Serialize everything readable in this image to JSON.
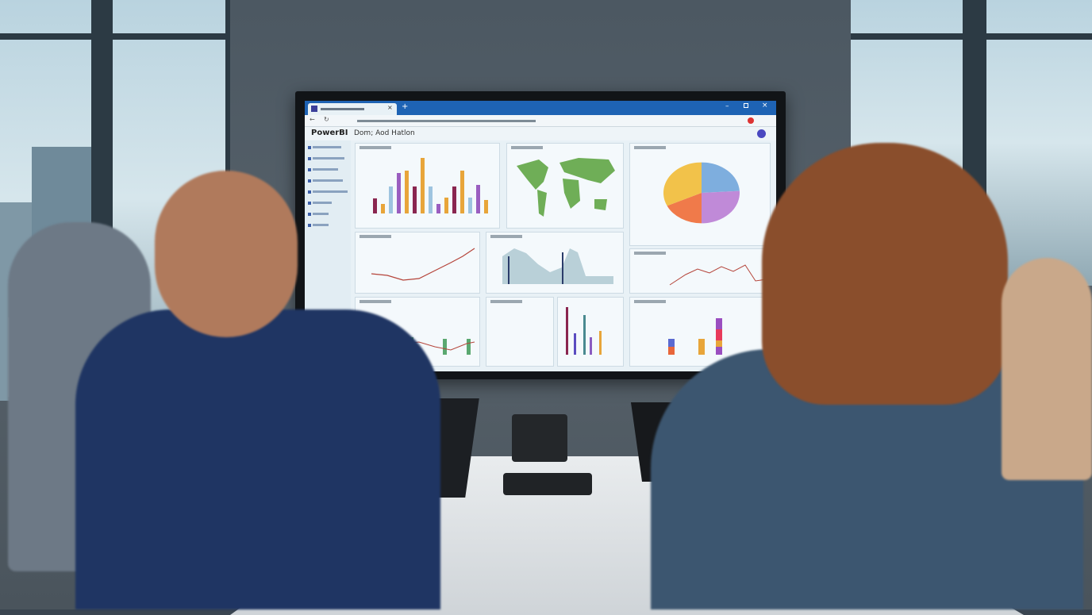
{
  "scene": "meeting-room-dashboard-presentation",
  "screen": {
    "app_name": "PowerBI",
    "dashboard_title": "Dom; Aod Hatlon",
    "window_controls": [
      "minimize",
      "maximize",
      "close"
    ],
    "sidebar_items": 8,
    "bar_chart": {
      "values": [
        22,
        14,
        40,
        60,
        64,
        40,
        82,
        40,
        14,
        24,
        40,
        64,
        24,
        42,
        20
      ]
    },
    "pie_chart": {
      "slices": [
        {
          "color": "#7eaede",
          "value": 24
        },
        {
          "color": "#c08ad8",
          "value": 26
        },
        {
          "color": "#f07a4a",
          "value": 18
        },
        {
          "color": "#f2c24a",
          "value": 32
        }
      ]
    },
    "colors": {
      "tab_bar": "#1e63b4",
      "bar_orange": "#e8a53a",
      "bar_purple": "#9a5ec0",
      "bar_maroon": "#8a2650",
      "bar_lightblue": "#9ec4e0",
      "map_green": "#6fae57",
      "accent_line": "#b5443a"
    }
  }
}
